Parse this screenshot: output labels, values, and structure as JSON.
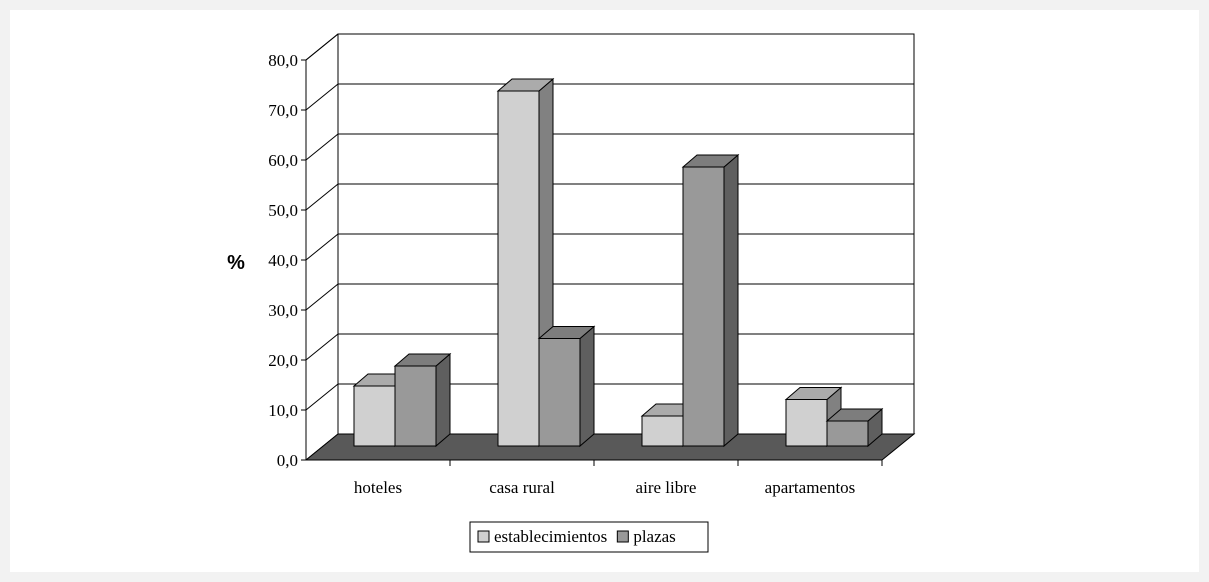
{
  "chart_data": {
    "type": "bar",
    "title": "",
    "xlabel": "",
    "ylabel": "%",
    "ylim": [
      0,
      80
    ],
    "yticks": [
      "0,0",
      "10,0",
      "20,0",
      "30,0",
      "40,0",
      "50,0",
      "60,0",
      "70,0",
      "80,0"
    ],
    "categories": [
      "hoteles",
      "casa rural",
      "aire libre",
      "apartamentos"
    ],
    "series": [
      {
        "name": "establecimientos",
        "values": [
          12.0,
          71.0,
          6.0,
          9.3
        ],
        "color": "#d0d0d0"
      },
      {
        "name": "plazas",
        "values": [
          16.0,
          21.5,
          55.8,
          5.0
        ],
        "color": "#999999"
      }
    ],
    "grid": true,
    "legend_position": "bottom",
    "style": "3d-column",
    "floor_color": "#595959"
  }
}
